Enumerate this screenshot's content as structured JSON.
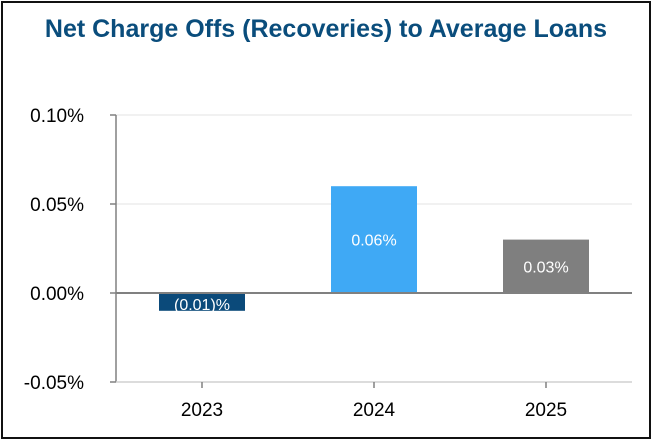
{
  "chart_data": {
    "type": "bar",
    "title": "Net Charge Offs (Recoveries) to Average Loans",
    "categories": [
      "2023",
      "2024",
      "2025"
    ],
    "values": [
      -0.0001,
      0.0006,
      0.0003
    ],
    "data_labels": [
      "(0.01)%",
      "0.06%",
      "0.03%"
    ],
    "bar_colors": [
      "#0b4a7a",
      "#3fa9f5",
      "#7f7f7f"
    ],
    "ylim": [
      -0.0005,
      0.001
    ],
    "yticks": [
      0.001,
      0.0005,
      0.0,
      -0.0005
    ],
    "ytick_labels": [
      "0.10%",
      "0.05%",
      "0.00%",
      "-0.05%"
    ],
    "grid": true,
    "xlabel": "",
    "ylabel": ""
  }
}
